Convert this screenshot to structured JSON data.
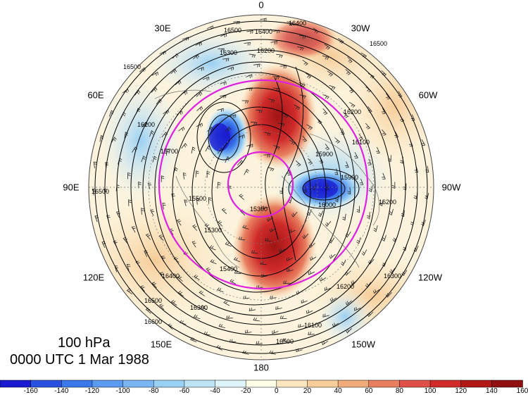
{
  "title": {
    "level": "100 hPa",
    "datetime": "0000 UTC 1 Mar 1988"
  },
  "map": {
    "projection": "north polar stereographic",
    "longitude_labels": [
      {
        "text": "0",
        "lon": 0
      },
      {
        "text": "30W",
        "lon": -30
      },
      {
        "text": "60W",
        "lon": -60
      },
      {
        "text": "90W",
        "lon": -90
      },
      {
        "text": "120W",
        "lon": -120
      },
      {
        "text": "150W",
        "lon": -150
      },
      {
        "text": "180",
        "lon": 180
      },
      {
        "text": "150E",
        "lon": 150
      },
      {
        "text": "120E",
        "lon": 120
      },
      {
        "text": "90E",
        "lon": 90
      },
      {
        "text": "60E",
        "lon": 60
      },
      {
        "text": "30E",
        "lon": 30
      }
    ],
    "contour_labels": [
      "16400",
      "16500",
      "16300",
      "16200",
      "16100",
      "16000",
      "15900",
      "15800",
      "15700",
      "15600",
      "15500",
      "15400",
      "15300",
      "16600"
    ],
    "highlight_circle_color": "#e020e0"
  },
  "colorbar": {
    "colors": [
      "#1a1ad0",
      "#2a50e0",
      "#3b78ea",
      "#5a9af0",
      "#79b6f2",
      "#9ad0f4",
      "#bde4f6",
      "#dff3fa",
      "#ffffe8",
      "#fbe6c0",
      "#f6cc98",
      "#f0ac78",
      "#e88060",
      "#df5048",
      "#d02a2a",
      "#b01818",
      "#901010"
    ],
    "tick_labels": [
      "-160",
      "-140",
      "-120",
      "-100",
      "-80",
      "-60",
      "-40",
      "-20",
      "0",
      "20",
      "40",
      "60",
      "80",
      "100",
      "120",
      "140",
      "160"
    ]
  }
}
